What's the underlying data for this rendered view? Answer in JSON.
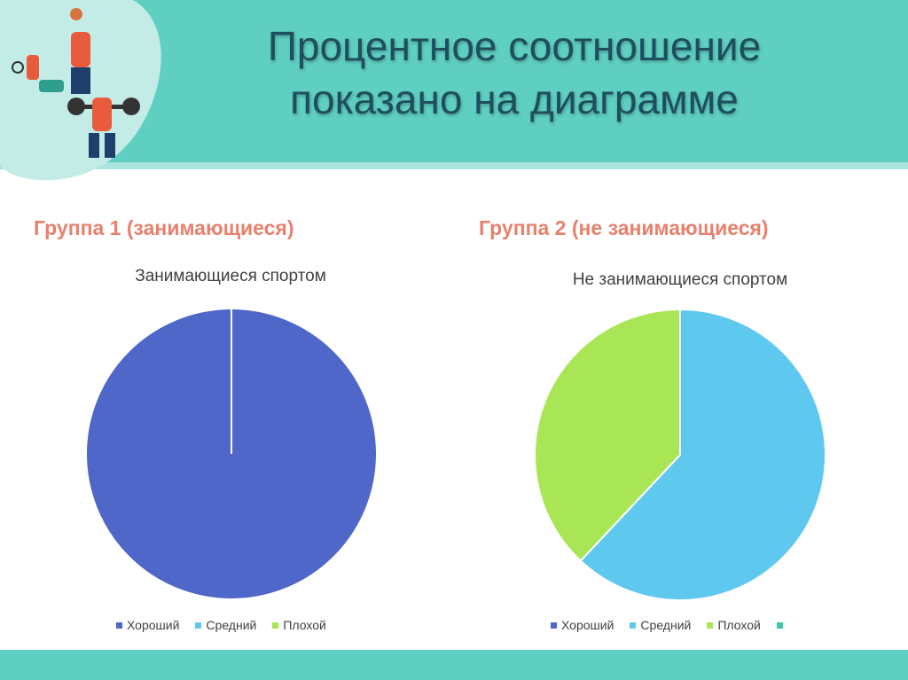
{
  "header": {
    "title_line1": "Процентное соотношение",
    "title_line2": "показано на диаграмме"
  },
  "groups": {
    "left_title": "Группа 1 (занимающиеся)",
    "right_title": "Группа 2 (не занимающиеся)"
  },
  "colors": {
    "header": "#5ecfc1",
    "group_title": "#e8806c",
    "series_good": "#4f67c8",
    "series_medium": "#5ec8ef",
    "series_bad": "#a8e655",
    "series_extra": "#3cc9a8"
  },
  "decoration": {
    "header_illustration": "athletes-illustration-icon"
  },
  "chart_data": [
    {
      "type": "pie",
      "title": "Занимающиеся спортом",
      "categories": [
        "Хороший",
        "Средний",
        "Плохой"
      ],
      "values": [
        100,
        0,
        0
      ],
      "legend": "bottom"
    },
    {
      "type": "pie",
      "title": "Не занимающиеся спортом",
      "categories": [
        "Хороший",
        "Средний",
        "Плохой",
        ""
      ],
      "values": [
        0,
        62,
        38,
        0
      ],
      "legend": "bottom"
    }
  ]
}
